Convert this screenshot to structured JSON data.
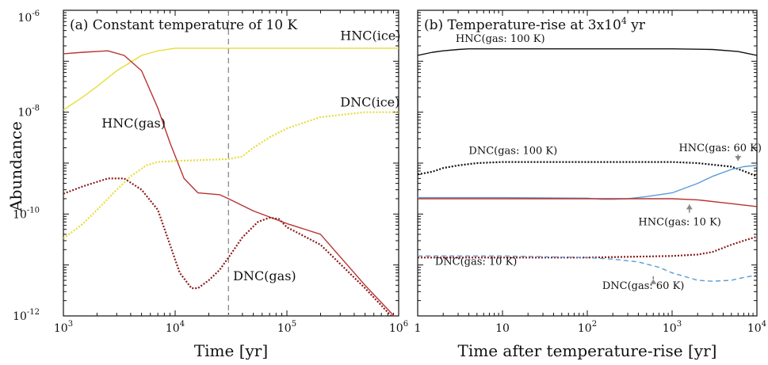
{
  "y_axis_label": "Abundance",
  "chart_data": [
    {
      "type": "line",
      "title": "(a) Constant temperature of 10 K",
      "xlabel": "Time [yr]",
      "ylabel": "Abundance",
      "xscale": "log",
      "yscale": "log",
      "xlim": [
        1000,
        1000000
      ],
      "ylim": [
        1e-12,
        1e-06
      ],
      "x_tick_labels": [
        {
          "base": "10",
          "exp": "3"
        },
        {
          "base": "10",
          "exp": "4"
        },
        {
          "base": "10",
          "exp": "5"
        },
        {
          "base": "10",
          "exp": "6"
        }
      ],
      "y_tick_labels": [
        {
          "base": "10",
          "exp": "-12"
        },
        {
          "base": "10",
          "exp": "-10"
        },
        {
          "base": "10",
          "exp": "-8"
        },
        {
          "base": "10",
          "exp": "-6"
        }
      ],
      "vertical_line_x": 30000,
      "series": [
        {
          "name": "HNC(ice)",
          "color": "#e8dc3a",
          "style": "solid",
          "x": [
            1000,
            1500,
            2000,
            3000,
            5000,
            7000,
            10000,
            30000,
            100000,
            1000000
          ],
          "y": [
            1.1e-08,
            2e-08,
            3.2e-08,
            6.5e-08,
            1.3e-07,
            1.6e-07,
            1.8e-07,
            1.8e-07,
            1.8e-07,
            1.8e-07
          ]
        },
        {
          "name": "HNC(gas)",
          "color": "#b83232",
          "style": "solid",
          "x": [
            1000,
            1500,
            2500,
            3500,
            5000,
            7000,
            9000,
            12000,
            16000,
            25000,
            30000,
            50000,
            100000,
            200000,
            500000,
            1000000
          ],
          "y": [
            1.4e-07,
            1.5e-07,
            1.6e-07,
            1.3e-07,
            6.5e-08,
            1.2e-08,
            2.5e-09,
            5e-10,
            2.6e-10,
            2.4e-10,
            2e-10,
            1.15e-10,
            6.5e-11,
            4e-11,
            4e-12,
            8e-13
          ]
        },
        {
          "name": "DNC(ice)",
          "color": "#e8dc3a",
          "style": "dotted",
          "x": [
            1000,
            1500,
            2000,
            3000,
            4000,
            5500,
            7000,
            10000,
            30000,
            40000,
            50000,
            70000,
            100000,
            200000,
            500000,
            1000000
          ],
          "y": [
            3.3e-11,
            6.5e-11,
            1.2e-10,
            3e-10,
            5.5e-10,
            9e-10,
            1.05e-09,
            1.1e-09,
            1.2e-09,
            1.35e-09,
            2e-09,
            3.2e-09,
            4.8e-09,
            8e-09,
            1e-08,
            1e-08
          ]
        },
        {
          "name": "DNC(gas)",
          "color": "#8b1a1a",
          "style": "dotted",
          "x": [
            1000,
            1500,
            2500,
            3500,
            5000,
            7000,
            9000,
            11000,
            14000,
            16000,
            20000,
            25000,
            30000,
            40000,
            55000,
            70000,
            85000,
            100000,
            200000,
            500000,
            1000000
          ],
          "y": [
            2.5e-10,
            3.5e-10,
            5e-10,
            5e-10,
            3e-10,
            1.2e-10,
            2.5e-11,
            7e-12,
            3.5e-12,
            3.5e-12,
            5e-12,
            8e-12,
            1.4e-11,
            3.5e-11,
            7e-11,
            8.5e-11,
            8e-11,
            5.5e-11,
            2.5e-11,
            3.5e-12,
            7e-13
          ]
        }
      ],
      "annotations": [
        {
          "text": "HNC(ice)",
          "x": 300000,
          "y": 2.6e-07
        },
        {
          "text": "HNC(gas)",
          "x": 2200,
          "y": 5e-09
        },
        {
          "text": "DNC(ice)",
          "x": 300000,
          "y": 1.3e-08
        },
        {
          "text": "DNC(gas)",
          "x": 33000,
          "y": 5e-12
        }
      ]
    },
    {
      "type": "line",
      "title": "(b) Temperature-rise at 3x10⁴ yr",
      "title_main": "(b) Temperature-rise at 3x10",
      "title_sup": "4",
      "title_tail": " yr",
      "xlabel": "Time after temperature-rise [yr]",
      "xscale": "log",
      "yscale": "log",
      "xlim": [
        1,
        10000
      ],
      "ylim": [
        1e-12,
        1e-06
      ],
      "x_tick_labels": [
        {
          "base": "1",
          "exp": ""
        },
        {
          "base": "10",
          "exp": ""
        },
        {
          "base": "10",
          "exp": "2"
        },
        {
          "base": "10",
          "exp": "3"
        },
        {
          "base": "10",
          "exp": "4"
        }
      ],
      "series": [
        {
          "name": "HNC(gas: 100 K)",
          "color": "#111111",
          "style": "solid",
          "x": [
            1,
            1.5,
            2,
            3,
            4,
            10,
            100,
            1000,
            3000,
            6000,
            10000
          ],
          "y": [
            1.3e-07,
            1.5e-07,
            1.6e-07,
            1.7e-07,
            1.75e-07,
            1.75e-07,
            1.75e-07,
            1.75e-07,
            1.7e-07,
            1.55e-07,
            1.3e-07
          ]
        },
        {
          "name": "DNC(gas: 100 K)",
          "color": "#111111",
          "style": "dotted",
          "x": [
            1,
            1.5,
            2,
            3,
            5,
            10,
            100,
            1000,
            2000,
            5000,
            7000,
            10000
          ],
          "y": [
            6e-10,
            6.8e-10,
            8e-10,
            9e-10,
            1e-09,
            1.05e-09,
            1.05e-09,
            1.05e-09,
            1e-09,
            8.5e-10,
            7e-10,
            5.5e-10
          ]
        },
        {
          "name": "HNC(gas: 60 K)",
          "color": "#5b9bd5",
          "style": "solid",
          "x": [
            1,
            10,
            100,
            150,
            200,
            300,
            500,
            1000,
            2000,
            3000,
            5000,
            7000,
            10000
          ],
          "y": [
            2.1e-10,
            2.1e-10,
            2.05e-10,
            1.95e-10,
            1.95e-10,
            2e-10,
            2.2e-10,
            2.6e-10,
            4e-10,
            5.5e-10,
            7.5e-10,
            8.5e-10,
            9e-10
          ]
        },
        {
          "name": "HNC(gas: 10 K)",
          "color": "#b83232",
          "style": "solid",
          "x": [
            1,
            10,
            100,
            1000,
            2000,
            5000,
            10000
          ],
          "y": [
            2e-10,
            2e-10,
            2e-10,
            2e-10,
            1.9e-10,
            1.6e-10,
            1.4e-10
          ]
        },
        {
          "name": "DNC(gas: 10 K)",
          "color": "#8b1a1a",
          "style": "dotted",
          "x": [
            1,
            10,
            100,
            1000,
            2000,
            3000,
            5000,
            7000,
            10000
          ],
          "y": [
            1.4e-11,
            1.4e-11,
            1.4e-11,
            1.5e-11,
            1.6e-11,
            1.8e-11,
            2.5e-11,
            3e-11,
            3.6e-11
          ]
        },
        {
          "name": "DNC(gas: 60 K)",
          "color": "#5b9bd5",
          "style": "dashed",
          "x": [
            1,
            10,
            100,
            200,
            400,
            700,
            1000,
            2000,
            3000,
            5000,
            7000,
            10000
          ],
          "y": [
            1.5e-11,
            1.5e-11,
            1.4e-11,
            1.3e-11,
            1.15e-11,
            9e-12,
            7e-12,
            5e-12,
            4.8e-12,
            5e-12,
            5.7e-12,
            6.3e-12
          ]
        }
      ],
      "annotations": [
        {
          "text": "HNC(gas: 100 K)",
          "x": 2.8,
          "y": 2.4e-07,
          "arrow": false
        },
        {
          "text": "DNC(gas: 100 K)",
          "x": 4,
          "y": 1.5e-09,
          "arrow": false
        },
        {
          "text": "HNC(gas: 60 K)",
          "x": 1200,
          "y": 1.7e-09,
          "arrow": true,
          "arrow_to": [
            6000,
            9e-10
          ]
        },
        {
          "text": "HNC(gas: 10 K)",
          "x": 400,
          "y": 6e-11,
          "arrow": true,
          "arrow_to": [
            1600,
            1.9e-10
          ]
        },
        {
          "text": "DNC(gas: 10 K)",
          "x": 1.6,
          "y": 1e-11,
          "arrow": false
        },
        {
          "text": "DNC(gas: 60 K)",
          "x": 150,
          "y": 3.4e-12,
          "arrow": true,
          "arrow_to": [
            600,
            6.5e-12
          ]
        }
      ]
    }
  ]
}
